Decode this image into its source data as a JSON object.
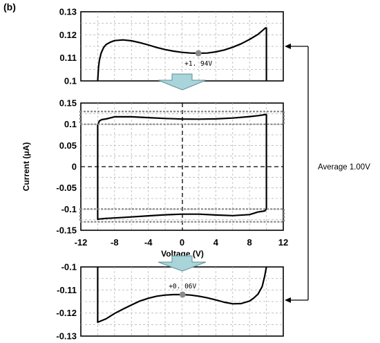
{
  "panel_label": "(b)",
  "side_label": "Average 1.00V",
  "colors": {
    "arrow_fill": "#a9d4d9",
    "arrow_stroke": "#5a8f96",
    "grid": "#b5b5b5",
    "zoom_box": "#888888"
  },
  "chart_data": [
    {
      "id": "top-zoom",
      "type": "line",
      "xlim": [
        -12,
        12
      ],
      "ylim": [
        0.1,
        0.13
      ],
      "yticks": [
        "0.1",
        "0.11",
        "0.12",
        "0.13"
      ],
      "grid": true,
      "annotation": {
        "text": "+1. 94V",
        "x": 1.94,
        "y": 0.112
      },
      "series": [
        {
          "x": [
            -10,
            -9.95,
            -9.9,
            -9.8,
            -9.6,
            -9.3,
            -9.0,
            -8.5,
            -8,
            -7,
            -6,
            -5,
            -4,
            -3,
            -2,
            -1,
            0,
            1,
            1.94,
            3,
            4,
            5,
            6,
            7,
            8,
            9,
            9.9,
            10,
            10,
            10
          ],
          "y": [
            0.1,
            0.103,
            0.106,
            0.109,
            0.112,
            0.1145,
            0.1158,
            0.1168,
            0.1175,
            0.1178,
            0.1174,
            0.1166,
            0.1156,
            0.1145,
            0.1136,
            0.1129,
            0.1124,
            0.1121,
            0.112,
            0.1121,
            0.1126,
            0.1134,
            0.1146,
            0.1161,
            0.118,
            0.1202,
            0.123,
            0.123,
            0.112,
            0.1
          ]
        }
      ]
    },
    {
      "id": "main-cv",
      "type": "line",
      "xlabel": "Voltage (V)",
      "ylabel": "Current (μA)",
      "xlim": [
        -12,
        12
      ],
      "ylim": [
        -0.15,
        0.15
      ],
      "xticks": [
        "-12",
        "-8",
        "-4",
        "0",
        "4",
        "8",
        "12"
      ],
      "yticks": [
        "0.15",
        "0.1",
        "0.05",
        "0",
        "-0.05",
        "-0.1",
        "-0.15"
      ],
      "grid": true,
      "zoom_windows": [
        {
          "y": [
            0.1,
            0.13
          ]
        },
        {
          "y": [
            -0.13,
            -0.1
          ]
        }
      ],
      "series": [
        {
          "x": [
            -10,
            -9.8,
            -9.5,
            -9,
            -8,
            -6,
            -4,
            -2,
            0,
            2,
            4,
            6,
            8,
            9,
            9.9,
            10,
            10,
            10,
            9.8,
            9,
            8,
            6,
            4,
            2,
            0,
            -2,
            -4,
            -6,
            -8,
            -9,
            -9.8,
            -10,
            -10,
            -10
          ],
          "y": [
            0.098,
            0.108,
            0.111,
            0.1125,
            0.1175,
            0.1175,
            0.1156,
            0.1136,
            0.1124,
            0.112,
            0.1126,
            0.1146,
            0.118,
            0.1202,
            0.123,
            0.123,
            0.11,
            -0.1,
            -0.1045,
            -0.107,
            -0.113,
            -0.1155,
            -0.114,
            -0.112,
            -0.112,
            -0.1135,
            -0.116,
            -0.1185,
            -0.121,
            -0.122,
            -0.1235,
            -0.124,
            -0.11,
            0.098
          ]
        }
      ]
    },
    {
      "id": "bottom-zoom",
      "type": "line",
      "xlim": [
        -12,
        12
      ],
      "ylim": [
        -0.13,
        -0.1
      ],
      "yticks": [
        "-0.1",
        "-0.11",
        "-0.12",
        "-0.13"
      ],
      "grid": true,
      "annotation": {
        "text": "+0. 06V",
        "x": 0.06,
        "y": -0.112
      },
      "series": [
        {
          "x": [
            -10,
            -10,
            -9,
            -8,
            -7,
            -6,
            -5,
            -4,
            -3,
            -2,
            -1,
            0.06,
            1,
            2,
            3,
            4,
            5,
            6,
            7,
            8,
            8.5,
            9,
            9.5,
            9.8,
            10,
            10
          ],
          "y": [
            -0.1,
            -0.124,
            -0.1225,
            -0.1202,
            -0.1183,
            -0.1165,
            -0.1148,
            -0.1136,
            -0.1127,
            -0.1122,
            -0.112,
            -0.112,
            -0.1122,
            -0.1127,
            -0.1134,
            -0.1143,
            -0.1153,
            -0.116,
            -0.1159,
            -0.1148,
            -0.1135,
            -0.1118,
            -0.1085,
            -0.104,
            -0.1,
            -0.1
          ]
        }
      ]
    }
  ]
}
